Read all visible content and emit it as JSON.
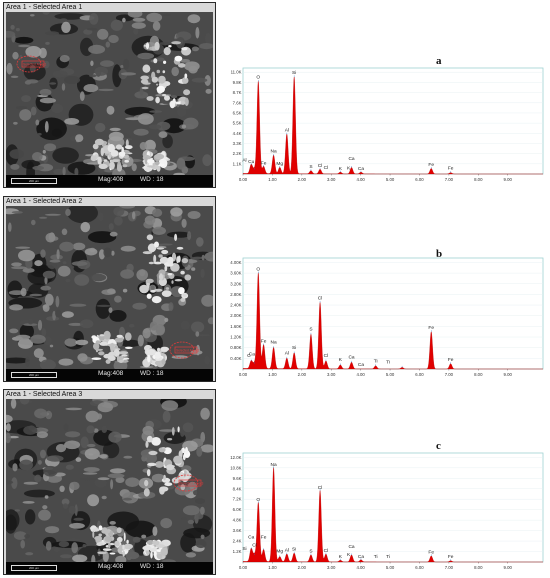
{
  "panels": [
    {
      "title": "Area 1 - Selected Area 1",
      "letter": "a",
      "scale_label": "200 μm",
      "mag_label": "Mag:408",
      "wd_label": "WD : 18",
      "selection_label": "Selected Area 1",
      "selection_pos": "left"
    },
    {
      "title": "Area 1 - Selected Area 2",
      "letter": "b",
      "scale_label": "200 μm",
      "mag_label": "Mag:408",
      "wd_label": "WD : 18",
      "selection_label": "Selected Area 2",
      "selection_pos": "lower-center"
    },
    {
      "title": "Area 1 - Selected Area 3",
      "letter": "c",
      "scale_label": "200 μm",
      "mag_label": "Mag:408",
      "wd_label": "WD : 18",
      "selection_label": "Selected Area 3",
      "selection_pos": "right"
    }
  ],
  "colors": {
    "spectrum_fill": "#e00000",
    "frame_border": "#9fd2d2",
    "grid": "#e2eef0",
    "footer": "#050505",
    "selection": "#e23a3a"
  },
  "chart_data": [
    {
      "type": "area",
      "x_ticks": [
        "0.00",
        "1.00",
        "2.00",
        "3.00",
        "4.00",
        "5.00",
        "6.00",
        "7.00",
        "8.00",
        "9.00"
      ],
      "y_ticks": [
        "1.1K",
        "2.2K",
        "3.3K",
        "4.4K",
        "5.5K",
        "6.5K",
        "7.6K",
        "8.7K",
        "9.8K",
        "11.0K"
      ],
      "ylim": [
        0,
        11000
      ],
      "xlim": [
        0,
        10.2
      ],
      "peaks": [
        {
          "x": 0.28,
          "y": 1000
        },
        {
          "x": 0.39,
          "y": 500
        },
        {
          "x": 0.52,
          "y": 10000
        },
        {
          "x": 0.7,
          "y": 800
        },
        {
          "x": 1.04,
          "y": 2000
        },
        {
          "x": 1.25,
          "y": 700
        },
        {
          "x": 1.49,
          "y": 4300
        },
        {
          "x": 1.74,
          "y": 10500
        },
        {
          "x": 2.31,
          "y": 350
        },
        {
          "x": 2.62,
          "y": 500
        },
        {
          "x": 3.31,
          "y": 200
        },
        {
          "x": 3.69,
          "y": 700
        },
        {
          "x": 4.01,
          "y": 200
        },
        {
          "x": 6.4,
          "y": 600
        },
        {
          "x": 7.06,
          "y": 150
        }
      ],
      "labels": [
        {
          "text": "Al",
          "x": 0.05,
          "y": 1350
        },
        {
          "text": "Cu",
          "x": 0.28,
          "y": 1200
        },
        {
          "text": "O",
          "x": 0.52,
          "y": 10300
        },
        {
          "text": "Fe",
          "x": 0.7,
          "y": 1050
        },
        {
          "text": "Na",
          "x": 1.04,
          "y": 2300
        },
        {
          "text": "Mg",
          "x": 1.25,
          "y": 950
        },
        {
          "text": "Al",
          "x": 1.49,
          "y": 4600
        },
        {
          "text": "Si",
          "x": 1.74,
          "y": 10800
        },
        {
          "text": "S",
          "x": 2.31,
          "y": 650
        },
        {
          "text": "Cl",
          "x": 2.62,
          "y": 750
        },
        {
          "text": "Cl",
          "x": 2.82,
          "y": 550
        },
        {
          "text": "K",
          "x": 3.31,
          "y": 450
        },
        {
          "text": "Ca",
          "x": 3.69,
          "y": 1500
        },
        {
          "text": "K",
          "x": 3.59,
          "y": 500
        },
        {
          "text": "Ca",
          "x": 4.01,
          "y": 450
        },
        {
          "text": "Fe",
          "x": 6.4,
          "y": 850
        },
        {
          "text": "Fe",
          "x": 7.06,
          "y": 500
        }
      ]
    },
    {
      "type": "area",
      "x_ticks": [
        "0.00",
        "1.00",
        "2.00",
        "3.00",
        "4.00",
        "5.00",
        "6.00",
        "7.00",
        "8.00",
        "9.00"
      ],
      "y_ticks": [
        "0.40K",
        "0.80K",
        "1.20K",
        "1.60K",
        "2.00K",
        "2.40K",
        "2.80K",
        "3.20K",
        "3.60K",
        "4.00K"
      ],
      "ylim": [
        0,
        4000
      ],
      "xlim": [
        0,
        10.2
      ],
      "peaks": [
        {
          "x": 0.28,
          "y": 300
        },
        {
          "x": 0.39,
          "y": 200
        },
        {
          "x": 0.52,
          "y": 3600
        },
        {
          "x": 0.7,
          "y": 900
        },
        {
          "x": 1.04,
          "y": 800
        },
        {
          "x": 1.49,
          "y": 400
        },
        {
          "x": 1.74,
          "y": 600
        },
        {
          "x": 2.31,
          "y": 1300
        },
        {
          "x": 2.62,
          "y": 2500
        },
        {
          "x": 2.82,
          "y": 300
        },
        {
          "x": 3.31,
          "y": 150
        },
        {
          "x": 3.69,
          "y": 250
        },
        {
          "x": 4.51,
          "y": 120
        },
        {
          "x": 5.41,
          "y": 60
        },
        {
          "x": 6.4,
          "y": 1400
        },
        {
          "x": 7.06,
          "y": 200
        }
      ],
      "labels": [
        {
          "text": "O",
          "x": 0.52,
          "y": 3700
        },
        {
          "text": "Fe",
          "x": 0.7,
          "y": 1000
        },
        {
          "text": "Na",
          "x": 1.04,
          "y": 950
        },
        {
          "text": "Si",
          "x": 1.74,
          "y": 750
        },
        {
          "text": "Al",
          "x": 1.49,
          "y": 550
        },
        {
          "text": "S",
          "x": 2.31,
          "y": 1450
        },
        {
          "text": "Cl",
          "x": 2.62,
          "y": 2600
        },
        {
          "text": "Cl",
          "x": 2.82,
          "y": 450
        },
        {
          "text": "K",
          "x": 3.31,
          "y": 300
        },
        {
          "text": "Ca",
          "x": 3.69,
          "y": 400
        },
        {
          "text": "Ca",
          "x": 4.01,
          "y": 120
        },
        {
          "text": "Ti",
          "x": 4.51,
          "y": 250
        },
        {
          "text": "Ti",
          "x": 4.93,
          "y": 200
        },
        {
          "text": "Fe",
          "x": 6.4,
          "y": 1500
        },
        {
          "text": "Fe",
          "x": 7.06,
          "y": 300
        },
        {
          "text": "C",
          "x": 0.2,
          "y": 450
        },
        {
          "text": "Ca",
          "x": 0.3,
          "y": 500
        }
      ]
    },
    {
      "type": "area",
      "x_ticks": [
        "0.00",
        "1.00",
        "2.00",
        "3.00",
        "4.00",
        "5.00",
        "6.00",
        "7.00",
        "8.00",
        "9.00"
      ],
      "y_ticks": [
        "1.2K",
        "2.4K",
        "3.6K",
        "4.8K",
        "6.0K",
        "7.2K",
        "8.4K",
        "9.6K",
        "10.8K",
        "12.0K"
      ],
      "ylim": [
        0,
        12000
      ],
      "xlim": [
        0,
        10.2
      ],
      "peaks": [
        {
          "x": 0.28,
          "y": 1500
        },
        {
          "x": 0.39,
          "y": 800
        },
        {
          "x": 0.52,
          "y": 6800
        },
        {
          "x": 0.7,
          "y": 1400
        },
        {
          "x": 1.04,
          "y": 10800
        },
        {
          "x": 1.25,
          "y": 600
        },
        {
          "x": 1.49,
          "y": 900
        },
        {
          "x": 1.74,
          "y": 1000
        },
        {
          "x": 2.31,
          "y": 800
        },
        {
          "x": 2.62,
          "y": 8200
        },
        {
          "x": 2.82,
          "y": 900
        },
        {
          "x": 3.31,
          "y": 200
        },
        {
          "x": 3.69,
          "y": 800
        },
        {
          "x": 4.01,
          "y": 250
        },
        {
          "x": 6.4,
          "y": 700
        },
        {
          "x": 7.06,
          "y": 150
        }
      ],
      "labels": [
        {
          "text": "Si",
          "x": 0.05,
          "y": 1400
        },
        {
          "text": "Ca",
          "x": 0.28,
          "y": 2700
        },
        {
          "text": "Cl",
          "x": 0.39,
          "y": 1800
        },
        {
          "text": "O",
          "x": 0.52,
          "y": 7000
        },
        {
          "text": "Fe",
          "x": 0.7,
          "y": 2700
        },
        {
          "text": "Na",
          "x": 1.04,
          "y": 11000
        },
        {
          "text": "Mg",
          "x": 1.25,
          "y": 1100
        },
        {
          "text": "Al",
          "x": 1.49,
          "y": 1200
        },
        {
          "text": "Si",
          "x": 1.74,
          "y": 1300
        },
        {
          "text": "S",
          "x": 2.31,
          "y": 1100
        },
        {
          "text": "Cl",
          "x": 2.62,
          "y": 8400
        },
        {
          "text": "Cl",
          "x": 2.82,
          "y": 1150
        },
        {
          "text": "K",
          "x": 3.31,
          "y": 450
        },
        {
          "text": "K",
          "x": 3.59,
          "y": 700
        },
        {
          "text": "Ca",
          "x": 3.69,
          "y": 1600
        },
        {
          "text": "Ca",
          "x": 4.01,
          "y": 450
        },
        {
          "text": "Ti",
          "x": 4.51,
          "y": 450
        },
        {
          "text": "Ti",
          "x": 4.93,
          "y": 450
        },
        {
          "text": "Fe",
          "x": 6.4,
          "y": 950
        },
        {
          "text": "Fe",
          "x": 7.06,
          "y": 450
        }
      ]
    }
  ]
}
